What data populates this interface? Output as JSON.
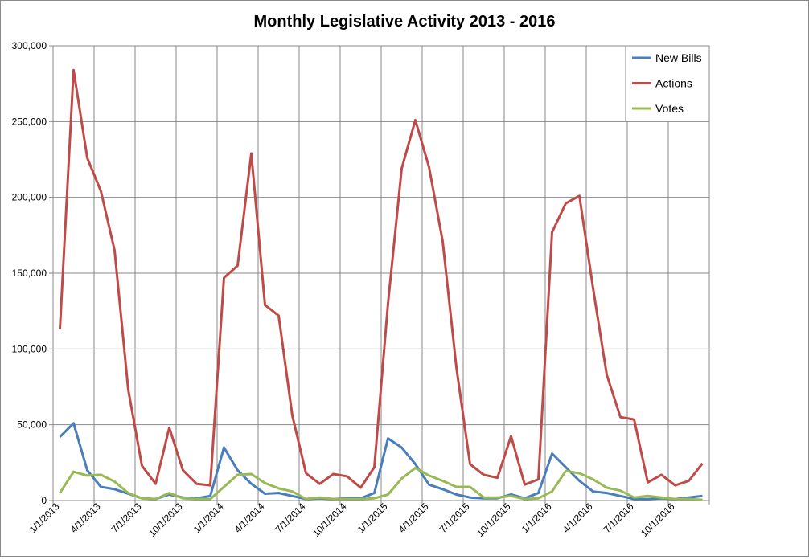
{
  "chart_data": {
    "type": "line",
    "title": "Monthly Legislative Activity 2013 - 2016",
    "xlabel": "",
    "ylabel": "",
    "ylim": [
      0,
      300000
    ],
    "yticks": [
      0,
      50000,
      100000,
      150000,
      200000,
      250000,
      300000
    ],
    "ytick_labels": [
      "0",
      "50,000",
      "100,000",
      "150,000",
      "200,000",
      "250,000",
      "300,000"
    ],
    "xtick_labels": [
      "1/1/2013",
      "4/1/2013",
      "7/1/2013",
      "10/1/2013",
      "1/1/2014",
      "4/1/2014",
      "7/1/2014",
      "10/1/2014",
      "1/1/2015",
      "4/1/2015",
      "7/1/2015",
      "10/1/2015",
      "1/1/2016",
      "4/1/2016",
      "7/1/2016",
      "10/1/2016"
    ],
    "grid": true,
    "legend_position": "top-right",
    "x": [
      "2013-01",
      "2013-02",
      "2013-03",
      "2013-04",
      "2013-05",
      "2013-06",
      "2013-07",
      "2013-08",
      "2013-09",
      "2013-10",
      "2013-11",
      "2013-12",
      "2014-01",
      "2014-02",
      "2014-03",
      "2014-04",
      "2014-05",
      "2014-06",
      "2014-07",
      "2014-08",
      "2014-09",
      "2014-10",
      "2014-11",
      "2014-12",
      "2015-01",
      "2015-02",
      "2015-03",
      "2015-04",
      "2015-05",
      "2015-06",
      "2015-07",
      "2015-08",
      "2015-09",
      "2015-10",
      "2015-11",
      "2015-12",
      "2016-01",
      "2016-02",
      "2016-03",
      "2016-04",
      "2016-05",
      "2016-06",
      "2016-07",
      "2016-08",
      "2016-09",
      "2016-10",
      "2016-11",
      "2016-12"
    ],
    "series": [
      {
        "name": "New Bills",
        "color": "#4A7EBB",
        "values": [
          42000,
          51000,
          20000,
          9000,
          7500,
          4500,
          1500,
          1000,
          4000,
          2000,
          1500,
          3000,
          35000,
          20000,
          11000,
          4500,
          5000,
          3000,
          1000,
          1500,
          1000,
          1500,
          1500,
          5000,
          41000,
          35000,
          24000,
          10500,
          7500,
          4000,
          2000,
          1500,
          1500,
          4000,
          1500,
          5000,
          31000,
          22000,
          13000,
          6000,
          5000,
          3000,
          1000,
          1000,
          1500,
          1000,
          2000,
          3000
        ]
      },
      {
        "name": "Actions",
        "color": "#BE4B48",
        "values": [
          113000,
          284000,
          226000,
          204000,
          165000,
          73000,
          23000,
          11000,
          48000,
          20000,
          11000,
          10000,
          147000,
          155000,
          229000,
          129000,
          122000,
          56000,
          18000,
          11000,
          17500,
          16000,
          8500,
          22000,
          130000,
          219000,
          251000,
          220000,
          171000,
          88000,
          24000,
          17000,
          15000,
          42500,
          10500,
          14000,
          177000,
          196000,
          201000,
          140000,
          83000,
          55000,
          53500,
          12000,
          17000,
          10000,
          13000,
          24500
        ]
      },
      {
        "name": "Votes",
        "color": "#98B954",
        "values": [
          5000,
          19000,
          16500,
          17000,
          12500,
          5000,
          1500,
          1000,
          5000,
          1500,
          1000,
          1000,
          9000,
          17000,
          17500,
          11500,
          8000,
          6000,
          1000,
          2000,
          1000,
          1000,
          1000,
          1500,
          4000,
          14500,
          21500,
          16500,
          13000,
          9000,
          9000,
          2000,
          2000,
          3000,
          1000,
          1500,
          6000,
          19500,
          18000,
          14000,
          8500,
          6500,
          2000,
          3000,
          2000,
          1000,
          1000,
          500
        ]
      }
    ]
  }
}
